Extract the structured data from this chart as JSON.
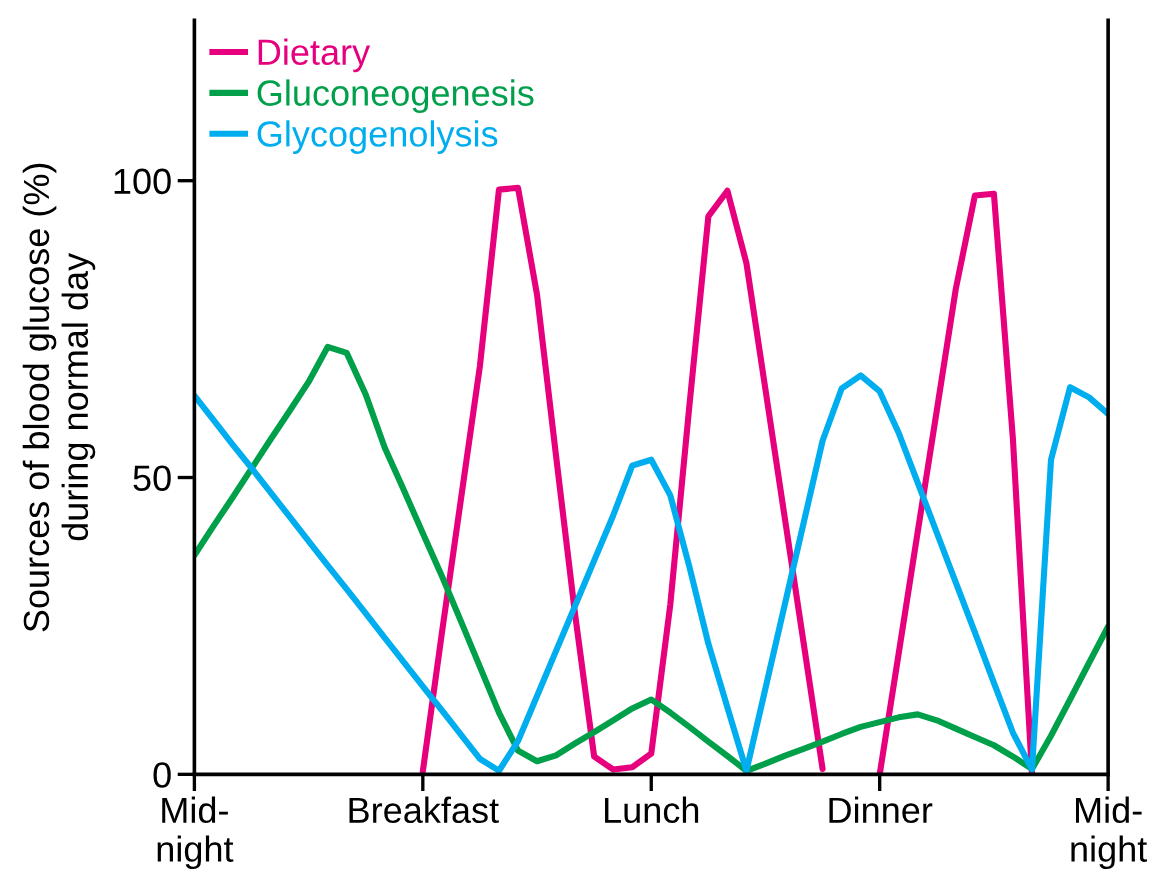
{
  "chart_data": {
    "type": "line",
    "ylabel": "Sources of blood glucose (%)\nduring normal day",
    "ylim": [
      0,
      127
    ],
    "categories": [
      "Mid-\nnight",
      null,
      null,
      null,
      null,
      null,
      null,
      null,
      null,
      null,
      null,
      null,
      "Breakfast",
      null,
      null,
      null,
      null,
      null,
      null,
      null,
      null,
      null,
      null,
      null,
      "Lunch",
      null,
      null,
      null,
      null,
      null,
      null,
      null,
      null,
      null,
      null,
      null,
      "Dinner",
      null,
      null,
      null,
      null,
      null,
      null,
      null,
      null,
      null,
      null,
      null,
      "Mid-\nnight"
    ],
    "yticks": [
      0,
      50,
      100
    ],
    "grid": false,
    "legend": "top left",
    "marker": "none",
    "line_style": "solid",
    "series": [
      {
        "name": "Dietary",
        "color": "#e6007e",
        "values": [
          null,
          null,
          null,
          null,
          null,
          null,
          null,
          null,
          null,
          null,
          null,
          null,
          0.5,
          23.8,
          46.3,
          68.8,
          98.5,
          98.8,
          80.8,
          53.6,
          26.9,
          3,
          0.8,
          1.2,
          3.5,
          28.6,
          62,
          94,
          98.3,
          86.1,
          64.8,
          43.5,
          22.2,
          0.9,
          null,
          null,
          0,
          20.4,
          40.9,
          61.3,
          81.8,
          97.5,
          97.8,
          56.4,
          0,
          null,
          null,
          null,
          null
        ]
      },
      {
        "name": "Gluconeogenesis",
        "color": "#00a04b",
        "values": [
          36.9,
          41.8,
          46.6,
          51.5,
          56.4,
          61.2,
          66.1,
          72,
          71,
          64,
          55,
          47.9,
          40.6,
          33.4,
          25.8,
          18.1,
          10.4,
          4,
          2.2,
          3.2,
          5.2,
          7.1,
          9.1,
          11.1,
          12.6,
          10.4,
          8.0,
          5.5,
          3.1,
          0.6,
          1.8,
          3.1,
          4.3,
          5.5,
          6.8,
          8.0,
          8.8,
          9.6,
          10.1,
          9.1,
          7.7,
          6.3,
          4.9,
          3.0,
          0.9,
          6.5,
          12.6,
          18.8,
          24.9
        ]
      },
      {
        "name": "Glycogenolysis",
        "color": "#00aeef",
        "values": [
          63.8,
          59.7,
          55.6,
          51.6,
          47.5,
          43.4,
          39.3,
          35.2,
          31.2,
          27.1,
          23.0,
          18.9,
          14.8,
          10.8,
          6.7,
          2.6,
          0.6,
          5.6,
          13.2,
          20.8,
          28.4,
          36.0,
          43.6,
          52,
          53,
          47,
          35,
          22.0,
          11.3,
          0.6,
          14.5,
          28.4,
          42.3,
          56.2,
          65,
          67.2,
          64.5,
          57.5,
          49.1,
          40.7,
          32.3,
          23.9,
          15.4,
          7.0,
          0.8,
          53,
          65.2,
          63.5,
          60.7
        ]
      }
    ]
  }
}
